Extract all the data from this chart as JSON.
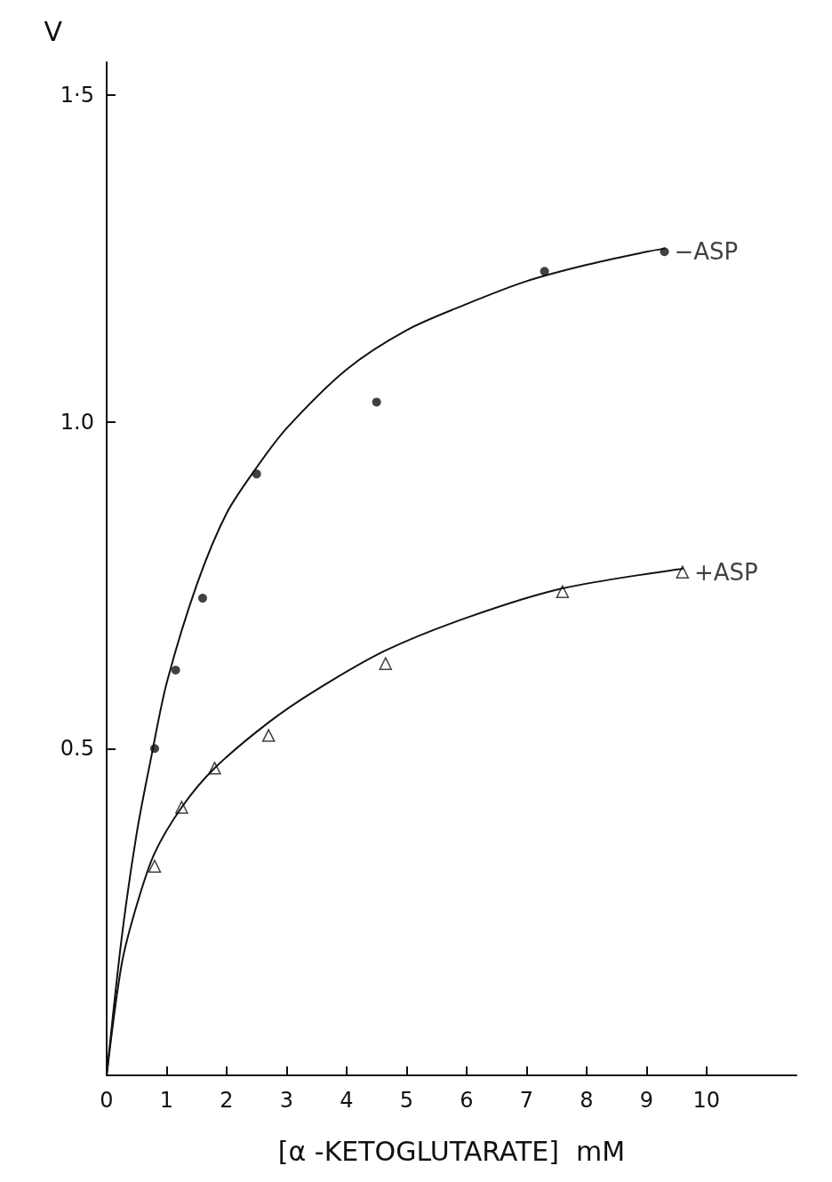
{
  "chart_data": {
    "type": "scatter",
    "xlabel": "[α -KETOGLUTARATE]  mM",
    "ylabel": "V",
    "xlim": [
      0,
      11.5
    ],
    "xticks": [
      0,
      1,
      2,
      3,
      4,
      5,
      6,
      7,
      8,
      9,
      10
    ],
    "ylim": [
      0,
      1.55
    ],
    "yticks": [
      {
        "value": 0.5,
        "label": "0.5"
      },
      {
        "value": 1.0,
        "label": "1.0"
      },
      {
        "value": 1.5,
        "label": "1·5"
      }
    ],
    "grid": false,
    "legend": false,
    "series": [
      {
        "name": "−ASP",
        "marker": "circle",
        "color": "#111111",
        "x": [
          0.8,
          1.15,
          1.6,
          2.5,
          4.5,
          7.3,
          9.3
        ],
        "values": [
          0.5,
          0.62,
          0.73,
          0.92,
          1.03,
          1.23,
          1.26
        ]
      },
      {
        "name": "+ASP",
        "marker": "triangle",
        "color": "#111111",
        "x": [
          0.8,
          1.25,
          1.8,
          2.7,
          4.65,
          7.6,
          9.6
        ],
        "values": [
          0.32,
          0.41,
          0.47,
          0.52,
          0.63,
          0.74,
          0.77
        ]
      },
      {
        "type": "line",
        "marker": "none",
        "color": "#111111",
        "x": [
          0,
          0.25,
          0.5,
          0.75,
          1,
          1.5,
          2,
          2.5,
          3,
          4,
          5,
          6,
          7,
          8,
          9,
          9.3
        ],
        "values": [
          0,
          0.21,
          0.37,
          0.49,
          0.6,
          0.75,
          0.86,
          0.93,
          0.99,
          1.08,
          1.14,
          1.18,
          1.215,
          1.24,
          1.26,
          1.265
        ]
      },
      {
        "type": "line",
        "marker": "none",
        "color": "#111111",
        "x": [
          0,
          0.25,
          0.5,
          0.8,
          1.25,
          1.8,
          2.7,
          3.5,
          4.65,
          6,
          7.6,
          9.6
        ],
        "values": [
          0,
          0.17,
          0.26,
          0.34,
          0.41,
          0.47,
          0.54,
          0.59,
          0.65,
          0.7,
          0.745,
          0.775
        ]
      }
    ]
  }
}
